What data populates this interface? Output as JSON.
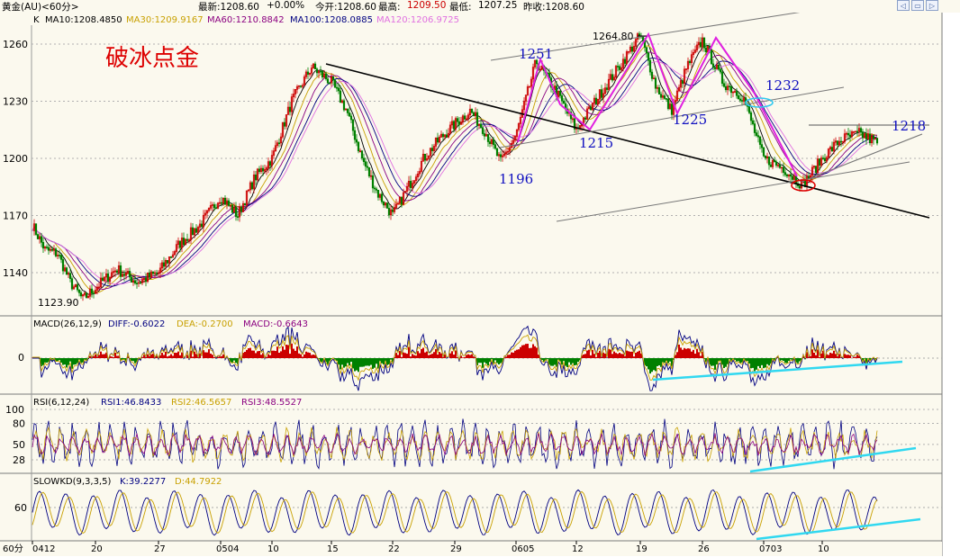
{
  "header": {
    "instrument": "黄金(AU)<60分>",
    "latest": "最新:1208.60",
    "change": "+0.00%",
    "open": "今开:1208.60",
    "high_label": "最高:",
    "high_value": "1209.50",
    "low_label": "最低:",
    "low_value": "1207.25",
    "prev_close": "昨收:1208.60"
  },
  "window_buttons": [
    "◁",
    "▭",
    "▷"
  ],
  "watermark": "破冰点金",
  "colors": {
    "background": "#fbf9ee",
    "candle_up": "#cc0000",
    "candle_down": "#008000",
    "ma10": "#000000",
    "ma30": "#c8a000",
    "ma60": "#8b0080",
    "ma100": "#000080",
    "ma120": "#e070e0",
    "pattern": "#e020e0",
    "annotation": "#1010c0",
    "cyan_trend": "#30d8f0",
    "watermark": "#dd0000"
  },
  "panels": {
    "price": {
      "legend_k": "K",
      "ma": [
        {
          "label": "MA10:1208.4850",
          "color": "#000000"
        },
        {
          "label": "MA30:1209.9167",
          "color": "#c8a000"
        },
        {
          "label": "MA60:1210.8842",
          "color": "#8b0080"
        },
        {
          "label": "MA100:1208.0885",
          "color": "#000080"
        },
        {
          "label": "MA120:1206.9725",
          "color": "#e070e0"
        }
      ],
      "y_ticks": [
        "1260",
        "1230",
        "1200",
        "1170",
        "1140"
      ]
    },
    "macd": {
      "legend": [
        {
          "label": "MACD(26,12,9)",
          "color": "#000000"
        },
        {
          "label": "DIFF:-0.6022",
          "color": "#000080"
        },
        {
          "label": "DEA:-0.2700",
          "color": "#c8a000"
        },
        {
          "label": "MACD:-0.6643",
          "color": "#8b0080"
        }
      ],
      "y_ticks": [
        "0"
      ]
    },
    "rsi": {
      "legend": [
        {
          "label": "RSI(6,12,24)",
          "color": "#000000"
        },
        {
          "label": "RSI1:46.8433",
          "color": "#000080"
        },
        {
          "label": "RSI2:46.5657",
          "color": "#c8a000"
        },
        {
          "label": "RSI3:48.5527",
          "color": "#8b0080"
        }
      ],
      "y_ticks": [
        "100",
        "80",
        "50",
        "28"
      ]
    },
    "kd": {
      "legend": [
        {
          "label": "SLOWKD(9,3,3,5)",
          "color": "#000000"
        },
        {
          "label": "K:39.2277",
          "color": "#000080"
        },
        {
          "label": "D:44.7922",
          "color": "#c8a000"
        }
      ],
      "y_ticks": [
        "60"
      ]
    }
  },
  "x_axis": {
    "period": "60分",
    "ticks": [
      "0412",
      "20",
      "27",
      "0504",
      "10",
      "15",
      "22",
      "29",
      "0605",
      "12",
      "19",
      "26",
      "0703",
      "10"
    ]
  },
  "annotations": {
    "low_1123": "1123.90",
    "high_1264": "1264.80",
    "l1251": "1251",
    "l1196": "1196",
    "l1215": "1215",
    "l1225": "1225",
    "l1232": "1232",
    "l1218": "1218"
  },
  "chart_data": {
    "type": "candlestick",
    "title": "黄金(AU)<60分>",
    "y_range": [
      1120,
      1272
    ],
    "y_ticks": [
      1260,
      1230,
      1200,
      1170,
      1140
    ],
    "x_ticks": [
      "0412",
      "20",
      "27",
      "0504",
      "10",
      "15",
      "22",
      "29",
      "0605",
      "12",
      "19",
      "26",
      "0703",
      "10"
    ],
    "price_path": [
      {
        "x": "0412",
        "y": 1165
      },
      {
        "x": "",
        "y": 1152
      },
      {
        "x": "",
        "y": 1150
      },
      {
        "x": "",
        "y": 1135
      },
      {
        "x": "",
        "y": 1126
      },
      {
        "x": "20",
        "y": 1132
      },
      {
        "x": "",
        "y": 1142
      },
      {
        "x": "",
        "y": 1135
      },
      {
        "x": "27",
        "y": 1140
      },
      {
        "x": "",
        "y": 1155
      },
      {
        "x": "",
        "y": 1165
      },
      {
        "x": "0504",
        "y": 1180
      },
      {
        "x": "",
        "y": 1170
      },
      {
        "x": "",
        "y": 1190
      },
      {
        "x": "10",
        "y": 1200
      },
      {
        "x": "",
        "y": 1230
      },
      {
        "x": "",
        "y": 1248
      },
      {
        "x": "15",
        "y": 1240
      },
      {
        "x": "",
        "y": 1225
      },
      {
        "x": "",
        "y": 1200
      },
      {
        "x": "",
        "y": 1182
      },
      {
        "x": "22",
        "y": 1170
      },
      {
        "x": "",
        "y": 1185
      },
      {
        "x": "",
        "y": 1200
      },
      {
        "x": "",
        "y": 1210
      },
      {
        "x": "29",
        "y": 1218
      },
      {
        "x": "",
        "y": 1225
      },
      {
        "x": "",
        "y": 1214
      },
      {
        "x": "",
        "y": 1198
      },
      {
        "x": "0605",
        "y": 1212
      },
      {
        "x": "",
        "y": 1251
      },
      {
        "x": "",
        "y": 1235
      },
      {
        "x": "12",
        "y": 1215
      },
      {
        "x": "",
        "y": 1232
      },
      {
        "x": "",
        "y": 1248
      },
      {
        "x": "19",
        "y": 1264.8
      },
      {
        "x": "",
        "y": 1238
      },
      {
        "x": "",
        "y": 1225
      },
      {
        "x": "",
        "y": 1248
      },
      {
        "x": "26",
        "y": 1262
      },
      {
        "x": "",
        "y": 1240
      },
      {
        "x": "",
        "y": 1232
      },
      {
        "x": "0703",
        "y": 1200
      },
      {
        "x": "",
        "y": 1195
      },
      {
        "x": "",
        "y": 1186
      },
      {
        "x": "10",
        "y": 1200
      },
      {
        "x": "",
        "y": 1210
      },
      {
        "x": "",
        "y": 1213
      },
      {
        "x": "",
        "y": 1208
      }
    ],
    "price_labels": [
      {
        "label": "1123.90",
        "value": 1123.9
      },
      {
        "label": "1264.80",
        "value": 1264.8
      },
      {
        "label": "1251",
        "value": 1251
      },
      {
        "label": "1196",
        "value": 1196
      },
      {
        "label": "1215",
        "value": 1215
      },
      {
        "label": "1225",
        "value": 1225
      },
      {
        "label": "1232",
        "value": 1232
      },
      {
        "label": "1218",
        "value": 1218
      }
    ],
    "moving_averages": {
      "MA10": 1208.485,
      "MA30": 1209.9167,
      "MA60": 1210.8842,
      "MA100": 1208.0885,
      "MA120": 1206.9725
    },
    "macd": {
      "DIFF": -0.6022,
      "DEA": -0.27,
      "MACD": -0.6643
    },
    "rsi": {
      "RSI1": 46.8433,
      "RSI2": 46.5657,
      "RSI3": 48.5527,
      "y_ticks": [
        100,
        80,
        50,
        28
      ]
    },
    "slowkd": {
      "K": 39.2277,
      "D": 44.7922,
      "y_ticks": [
        60
      ]
    }
  }
}
